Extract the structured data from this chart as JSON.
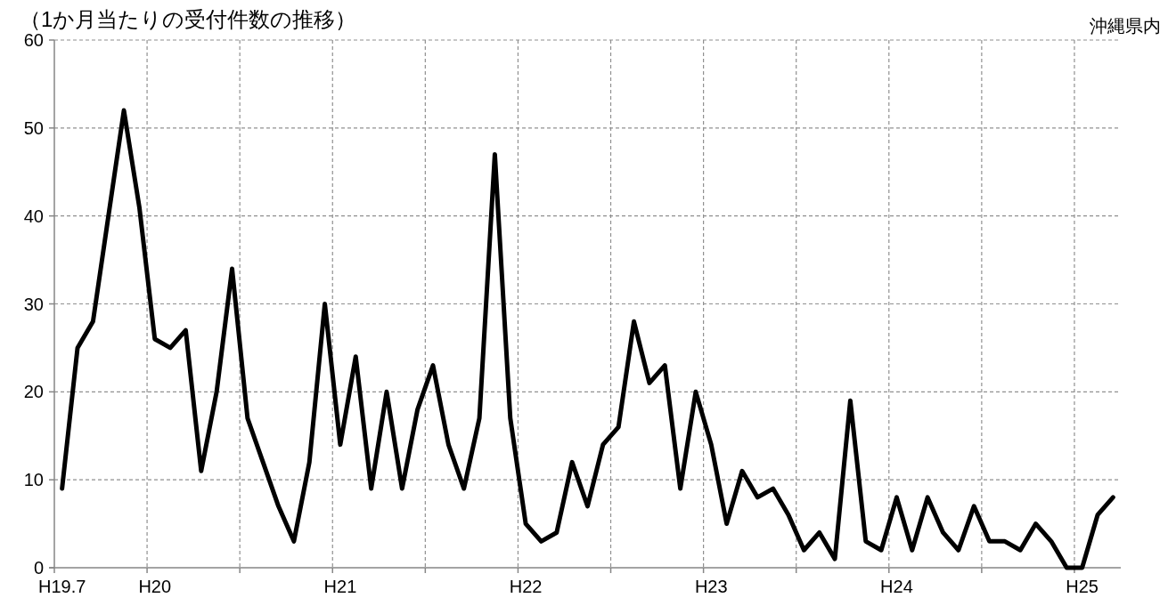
{
  "chart_data": {
    "type": "line",
    "title": "（1か月当たりの受付件数の推移）",
    "annotations": [
      "沖縄県内"
    ],
    "categories": [
      "H19.7",
      null,
      null,
      null,
      null,
      null,
      "H20",
      null,
      null,
      null,
      null,
      null,
      null,
      null,
      null,
      null,
      null,
      null,
      "H21",
      null,
      null,
      null,
      null,
      null,
      null,
      null,
      null,
      null,
      null,
      null,
      "H22",
      null,
      null,
      null,
      null,
      null,
      null,
      null,
      null,
      null,
      null,
      null,
      "H23",
      null,
      null,
      null,
      null,
      null,
      null,
      null,
      null,
      null,
      null,
      null,
      "H24",
      null,
      null,
      null,
      null,
      null,
      null,
      null,
      null,
      null,
      null,
      null,
      "H25",
      null,
      null
    ],
    "values": [
      9,
      25,
      28,
      40,
      52,
      41,
      26,
      25,
      27,
      11,
      20,
      34,
      17,
      12,
      7,
      3,
      12,
      30,
      14,
      24,
      9,
      20,
      9,
      18,
      23,
      14,
      9,
      17,
      47,
      17,
      5,
      3,
      4,
      12,
      7,
      14,
      16,
      28,
      21,
      23,
      9,
      20,
      14,
      5,
      11,
      8,
      9,
      6,
      2,
      4,
      1,
      19,
      3,
      2,
      8,
      2,
      8,
      4,
      2,
      7,
      3,
      3,
      2,
      5,
      3,
      0,
      0,
      6,
      8
    ],
    "color": "#000000",
    "ylim": [
      0,
      60
    ],
    "yticks": [
      0,
      10,
      20,
      30,
      40,
      50,
      60
    ],
    "grid": true
  }
}
